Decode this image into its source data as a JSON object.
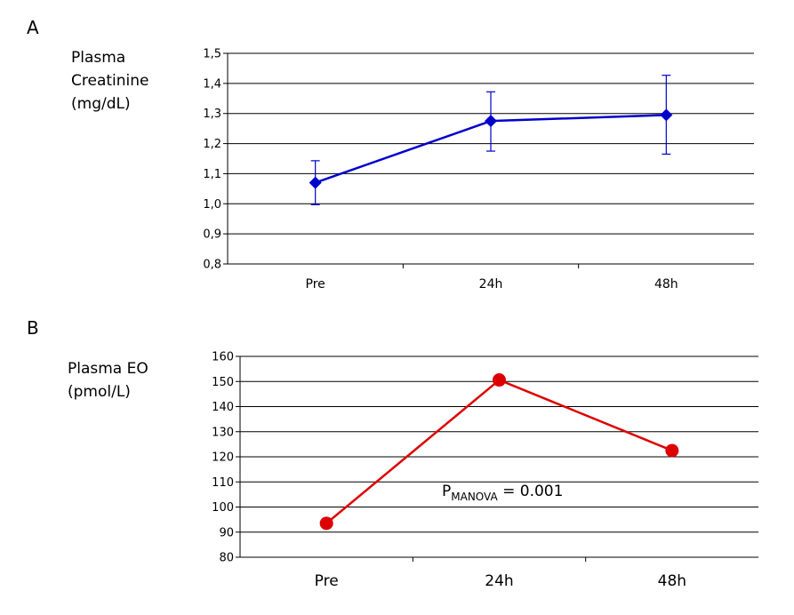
{
  "chart_data": [
    {
      "panel": "A",
      "type": "line",
      "ylabel": [
        "Plasma",
        "Creatinine",
        "(mg/dL)"
      ],
      "categories": [
        "Pre",
        "24h",
        "48h"
      ],
      "ylim": [
        0.8,
        1.5
      ],
      "yticks": [
        "0,8",
        "0,9",
        "1,0",
        "1,1",
        "1,2",
        "1,3",
        "1,4",
        "1,5"
      ],
      "grid": true,
      "series": [
        {
          "values": [
            1.07,
            1.275,
            1.295
          ],
          "err_low": [
            0.997,
            1.175,
            1.165
          ],
          "err_high": [
            1.143,
            1.372,
            1.427
          ],
          "color": "#0000cc",
          "marker": "diamond"
        }
      ]
    },
    {
      "panel": "B",
      "type": "line",
      "ylabel": [
        "Plasma EO",
        "(pmol/L)"
      ],
      "categories": [
        "Pre",
        "24h",
        "48h"
      ],
      "ylim": [
        80,
        160
      ],
      "yticks": [
        "80",
        "90",
        "100",
        "110",
        "120",
        "130",
        "140",
        "150",
        "160"
      ],
      "grid": true,
      "series": [
        {
          "values": [
            93.5,
            150.6,
            122.5
          ],
          "color": "#dd0000",
          "marker": "circle"
        }
      ],
      "annotation": {
        "main": "P",
        "sub": "MANOVA",
        "rest": " = 0.001"
      }
    }
  ]
}
